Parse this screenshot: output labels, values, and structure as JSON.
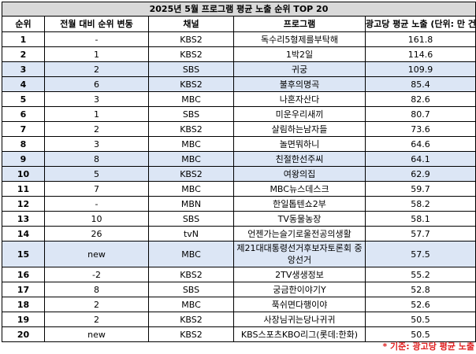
{
  "title": "2025년 5월 프로그램 평균 노출 순위 TOP 20",
  "headers": {
    "rank": "순위",
    "change": "전월 대비 순위 변동",
    "channel": "채널",
    "program": "프로그램",
    "ad_exposure": "광고당 평균 노출 (단위: 만 건)"
  },
  "rows": [
    {
      "rank": "1",
      "change": "-",
      "channel": "KBS2",
      "program": "독수리5형제를부탁해",
      "value": "161.8",
      "highlight": false
    },
    {
      "rank": "2",
      "change": "1",
      "channel": "KBS2",
      "program": "1박2일",
      "value": "114.6",
      "highlight": false
    },
    {
      "rank": "3",
      "change": "2",
      "channel": "SBS",
      "program": "귀궁",
      "value": "109.9",
      "highlight": true
    },
    {
      "rank": "4",
      "change": "6",
      "channel": "KBS2",
      "program": "불후의명곡",
      "value": "85.4",
      "highlight": true
    },
    {
      "rank": "5",
      "change": "3",
      "channel": "MBC",
      "program": "나혼자산다",
      "value": "82.6",
      "highlight": false
    },
    {
      "rank": "6",
      "change": "1",
      "channel": "SBS",
      "program": "미운우리새끼",
      "value": "80.7",
      "highlight": false
    },
    {
      "rank": "7",
      "change": "2",
      "channel": "KBS2",
      "program": "살림하는남자들",
      "value": "73.6",
      "highlight": false
    },
    {
      "rank": "8",
      "change": "3",
      "channel": "MBC",
      "program": "놀면뭐하니",
      "value": "64.6",
      "highlight": false
    },
    {
      "rank": "9",
      "change": "8",
      "channel": "MBC",
      "program": "친절한선주씨",
      "value": "64.1",
      "highlight": true
    },
    {
      "rank": "10",
      "change": "5",
      "channel": "KBS2",
      "program": "여왕의집",
      "value": "62.9",
      "highlight": true
    },
    {
      "rank": "11",
      "change": "7",
      "channel": "MBC",
      "program": "MBC뉴스데스크",
      "value": "59.7",
      "highlight": false
    },
    {
      "rank": "12",
      "change": "-",
      "channel": "MBN",
      "program": "한일톱텐쇼2부",
      "value": "58.2",
      "highlight": false
    },
    {
      "rank": "13",
      "change": "10",
      "channel": "SBS",
      "program": "TV동물농장",
      "value": "58.1",
      "highlight": false
    },
    {
      "rank": "14",
      "change": "26",
      "channel": "tvN",
      "program": "언젠가는슬기로울전공의생활",
      "value": "57.7",
      "highlight": false
    },
    {
      "rank": "15",
      "change": "new",
      "channel": "MBC",
      "program": "제21대대통령선거후보자토론회 중앙선거",
      "value": "57.5",
      "highlight": true,
      "tall": true
    },
    {
      "rank": "16",
      "change": "-2",
      "channel": "KBS2",
      "program": "2TV생생정보",
      "value": "55.2",
      "highlight": false
    },
    {
      "rank": "17",
      "change": "8",
      "channel": "SBS",
      "program": "궁금한이야기Y",
      "value": "52.8",
      "highlight": false
    },
    {
      "rank": "18",
      "change": "2",
      "channel": "MBC",
      "program": "푹쉬면다행이야",
      "value": "52.6",
      "highlight": false
    },
    {
      "rank": "19",
      "change": "2",
      "channel": "KBS2",
      "program": "사장님귀는당나귀귀",
      "value": "50.5",
      "highlight": false
    },
    {
      "rank": "20",
      "change": "new",
      "channel": "KBS2",
      "program": "KBS스포츠KBO리그(롯데:한화)",
      "value": "50.5",
      "highlight": false
    }
  ],
  "footnote": "* 기준: 광고당 평균 노출",
  "colors": {
    "title_bg": "#d9d9d9",
    "highlight_bg": "#dce6f5",
    "footnote": "#e02020"
  }
}
